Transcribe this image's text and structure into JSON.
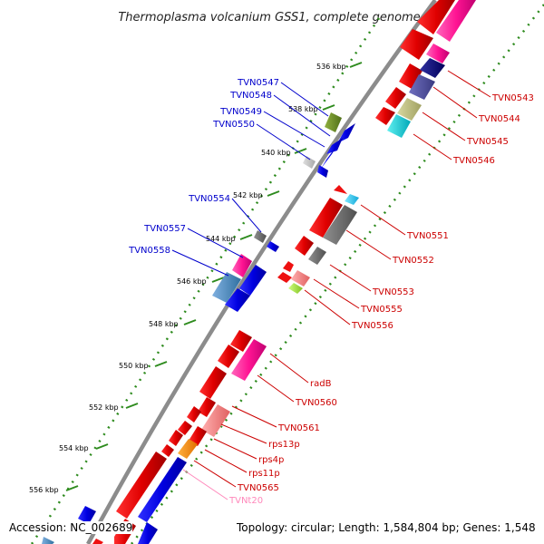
{
  "title": "Thermoplasma volcanium GSS1, complete genome",
  "accession_text": "Accession: NC_002689",
  "info_text": "Topology: circular; Length: 1,584,804 bp; Genes: 1,548",
  "colors": {
    "backbone": "#8c8c8c",
    "tick_marks": "#2e8b1e",
    "left_labels": "#0000cc",
    "right_labels": "#cc0000",
    "trna_label": "#ff88bb"
  },
  "ticks": [
    {
      "label": "536 kbp"
    },
    {
      "label": "538 kbp"
    },
    {
      "label": "540 kbp"
    },
    {
      "label": "542 kbp"
    },
    {
      "label": "544 kbp"
    },
    {
      "label": "546 kbp"
    },
    {
      "label": "548 kbp"
    },
    {
      "label": "550 kbp"
    },
    {
      "label": "552 kbp"
    },
    {
      "label": "554 kbp"
    },
    {
      "label": "556 kbp"
    }
  ],
  "left_genes": [
    {
      "name": "TVN0547",
      "color": "#0000cc"
    },
    {
      "name": "TVN0548",
      "color": "#0000cc"
    },
    {
      "name": "TVN0549",
      "color": "#0000cc"
    },
    {
      "name": "TVN0550",
      "color": "#0000cc"
    },
    {
      "name": "TVN0554",
      "color": "#0000cc"
    },
    {
      "name": "TVN0557",
      "color": "#0000cc"
    },
    {
      "name": "TVN0558",
      "color": "#0000cc"
    }
  ],
  "right_genes": [
    {
      "name": "TVN0543",
      "color": "#cc0000"
    },
    {
      "name": "TVN0544",
      "color": "#cc0000"
    },
    {
      "name": "TVN0545",
      "color": "#cc0000"
    },
    {
      "name": "TVN0546",
      "color": "#cc0000"
    },
    {
      "name": "TVN0551",
      "color": "#cc0000"
    },
    {
      "name": "TVN0552",
      "color": "#cc0000"
    },
    {
      "name": "TVN0553",
      "color": "#cc0000"
    },
    {
      "name": "TVN0555",
      "color": "#cc0000"
    },
    {
      "name": "TVN0556",
      "color": "#cc0000"
    },
    {
      "name": "radB",
      "color": "#cc0000"
    },
    {
      "name": "TVN0560",
      "color": "#cc0000"
    },
    {
      "name": "TVN0561",
      "color": "#cc0000"
    },
    {
      "name": "rps13p",
      "color": "#cc0000"
    },
    {
      "name": "rps4p",
      "color": "#cc0000"
    },
    {
      "name": "rps11p",
      "color": "#cc0000"
    },
    {
      "name": "TVN0565",
      "color": "#cc0000"
    },
    {
      "name": "TVNt20",
      "color": "#ff88bb"
    }
  ]
}
